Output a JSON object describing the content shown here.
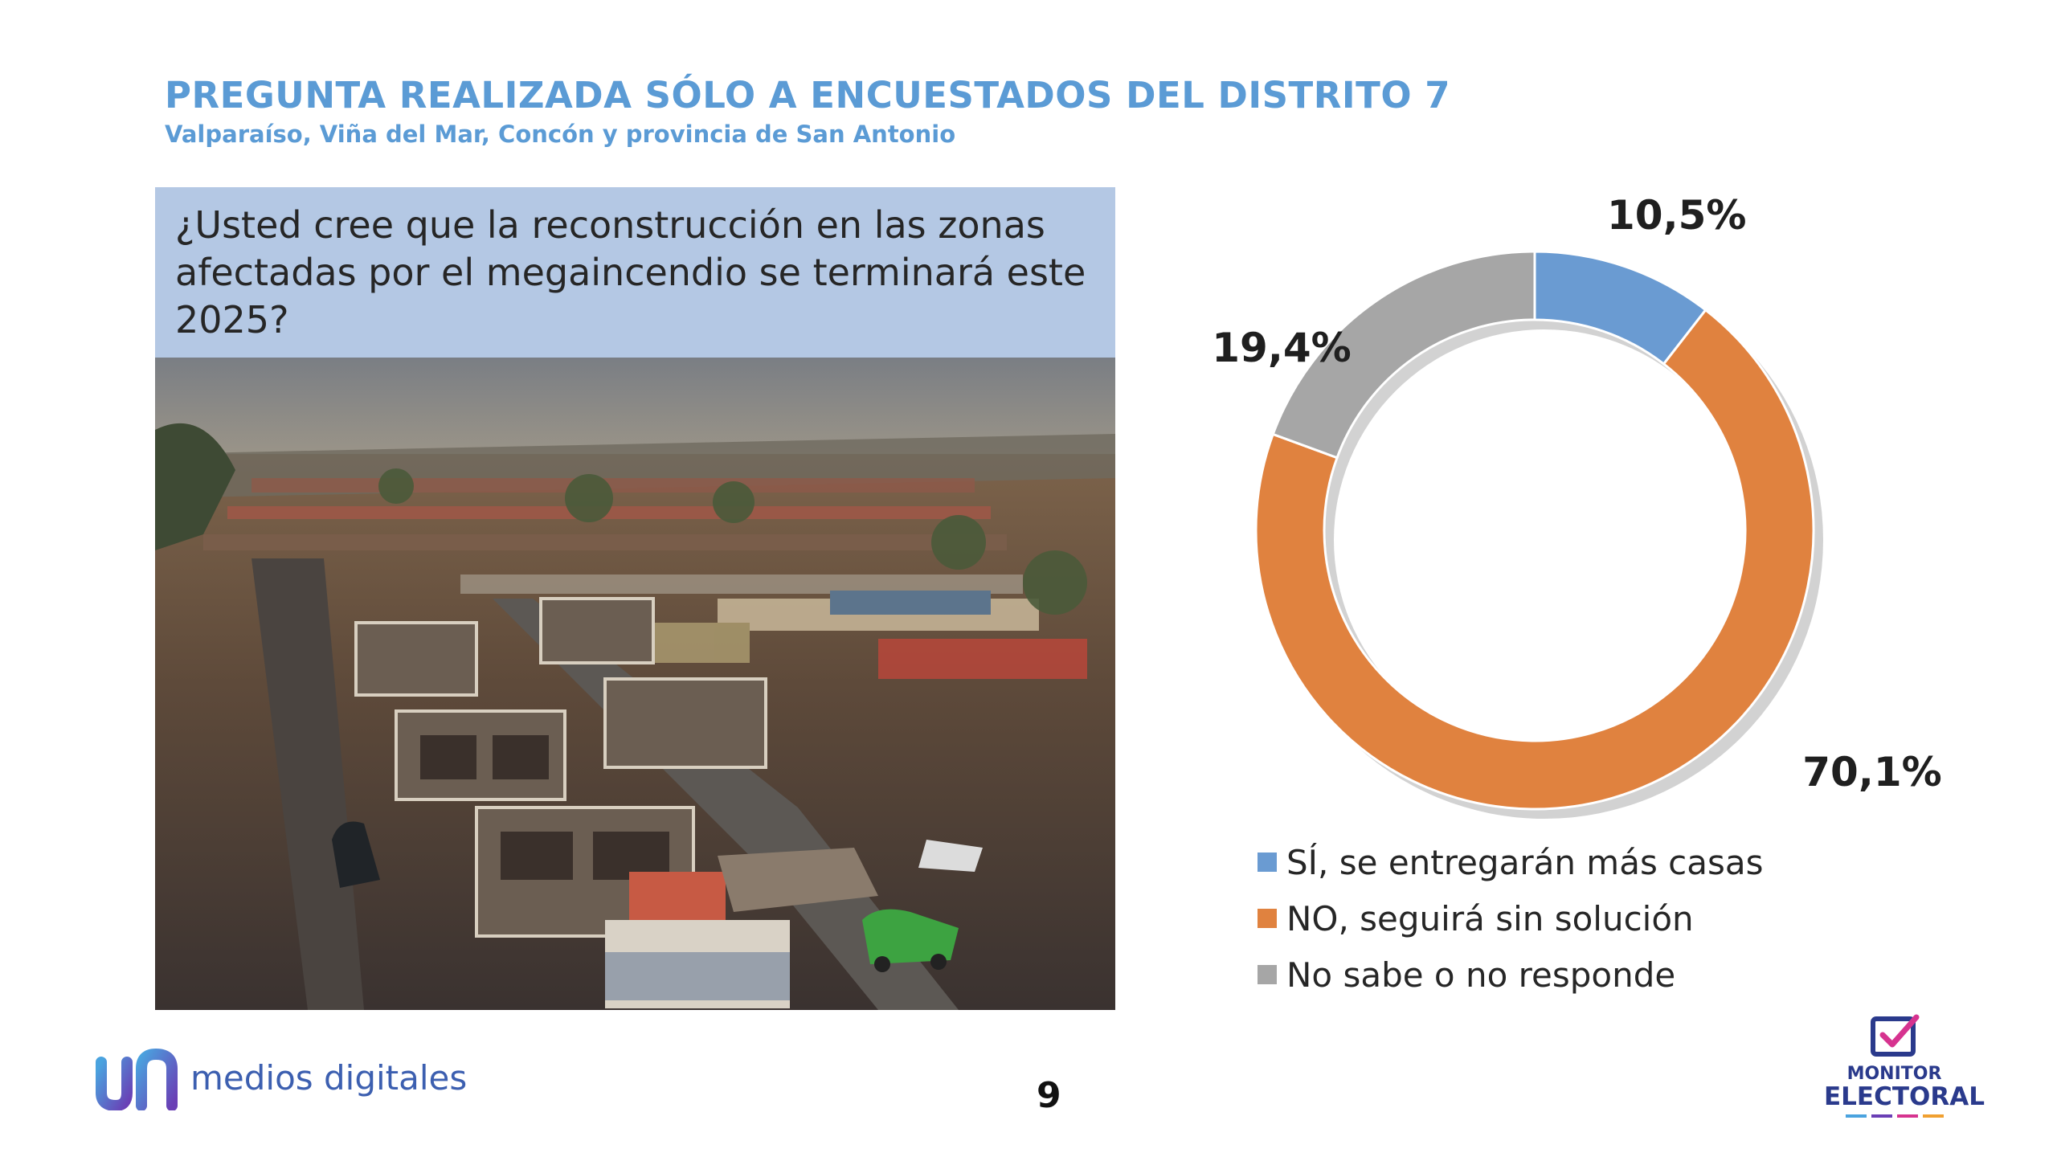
{
  "header": {
    "title": "PREGUNTA REALIZADA SÓLO A ENCUESTADOS DEL DISTRITO 7",
    "subtitle": "Valparaíso, Viña del Mar, Concón y provincia de San Antonio"
  },
  "question": "¿Usted cree que la reconstrucción en las zonas afectadas por el megaincendio se terminará este 2025?",
  "chart_data": {
    "type": "pie",
    "style": "donut",
    "labels": [
      "SÍ, se entregarán más casas",
      "NO, seguirá sin solución",
      "No sabe o no responde"
    ],
    "values": [
      10.5,
      70.1,
      19.4
    ],
    "value_labels": [
      "10,5%",
      "70,1%",
      "19,4%"
    ],
    "colors": [
      "#6a9bd2",
      "#e0823f",
      "#a6a6a6"
    ],
    "legend_position": "bottom"
  },
  "footer": {
    "brand": "medios digitales",
    "page_number": "9",
    "monitor_line1": "MONITOR",
    "monitor_line2": "ELECTORAL"
  }
}
